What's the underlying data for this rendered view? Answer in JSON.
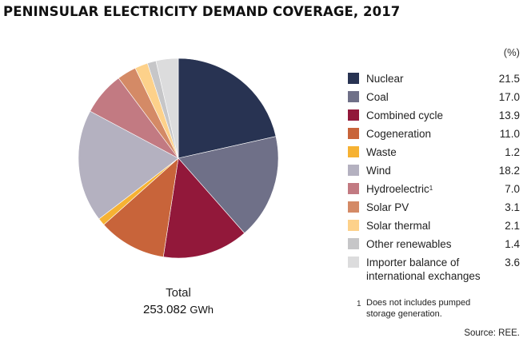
{
  "chart_data": {
    "type": "pie",
    "title": "PENINSULAR ELECTRICITY DEMAND COVERAGE, 2017",
    "unit_label": "(%)",
    "start_angle": "12 o'clock",
    "direction": "clockwise",
    "slices": [
      {
        "label": "Nuclear",
        "value": 21.5,
        "display": "21.5",
        "color": "#283352"
      },
      {
        "label": "Coal",
        "value": 17.0,
        "display": "17.0",
        "color": "#6f7088"
      },
      {
        "label": "Combined cycle",
        "value": 13.9,
        "display": "13.9",
        "color": "#92183a"
      },
      {
        "label": "Cogeneration",
        "value": 11.0,
        "display": "11.0",
        "color": "#c8643a"
      },
      {
        "label": "Waste",
        "value": 1.2,
        "display": "1.2",
        "color": "#f6b233"
      },
      {
        "label": "Wind",
        "value": 18.2,
        "display": "18.2",
        "color": "#b4b1c0"
      },
      {
        "label": "Hydroelectric",
        "footnote_mark": "1",
        "value": 7.0,
        "display": "7.0",
        "color": "#c27a82"
      },
      {
        "label": "Solar PV",
        "value": 3.1,
        "display": "3.1",
        "color": "#d48a66"
      },
      {
        "label": "Solar thermal",
        "value": 2.1,
        "display": "2.1",
        "color": "#fdd18a"
      },
      {
        "label": "Other renewables",
        "value": 1.4,
        "display": "1.4",
        "color": "#c6c6c8"
      },
      {
        "label": "Importer balance of international exchanges",
        "value": 3.6,
        "display": "3.6",
        "color": "#dcdcdd"
      }
    ],
    "total": {
      "label": "Total",
      "value": "253.082",
      "unit": "GWh"
    },
    "footnote": {
      "mark": "1",
      "text": "Does not includes pumped storage generation."
    },
    "source": "Source: REE."
  }
}
